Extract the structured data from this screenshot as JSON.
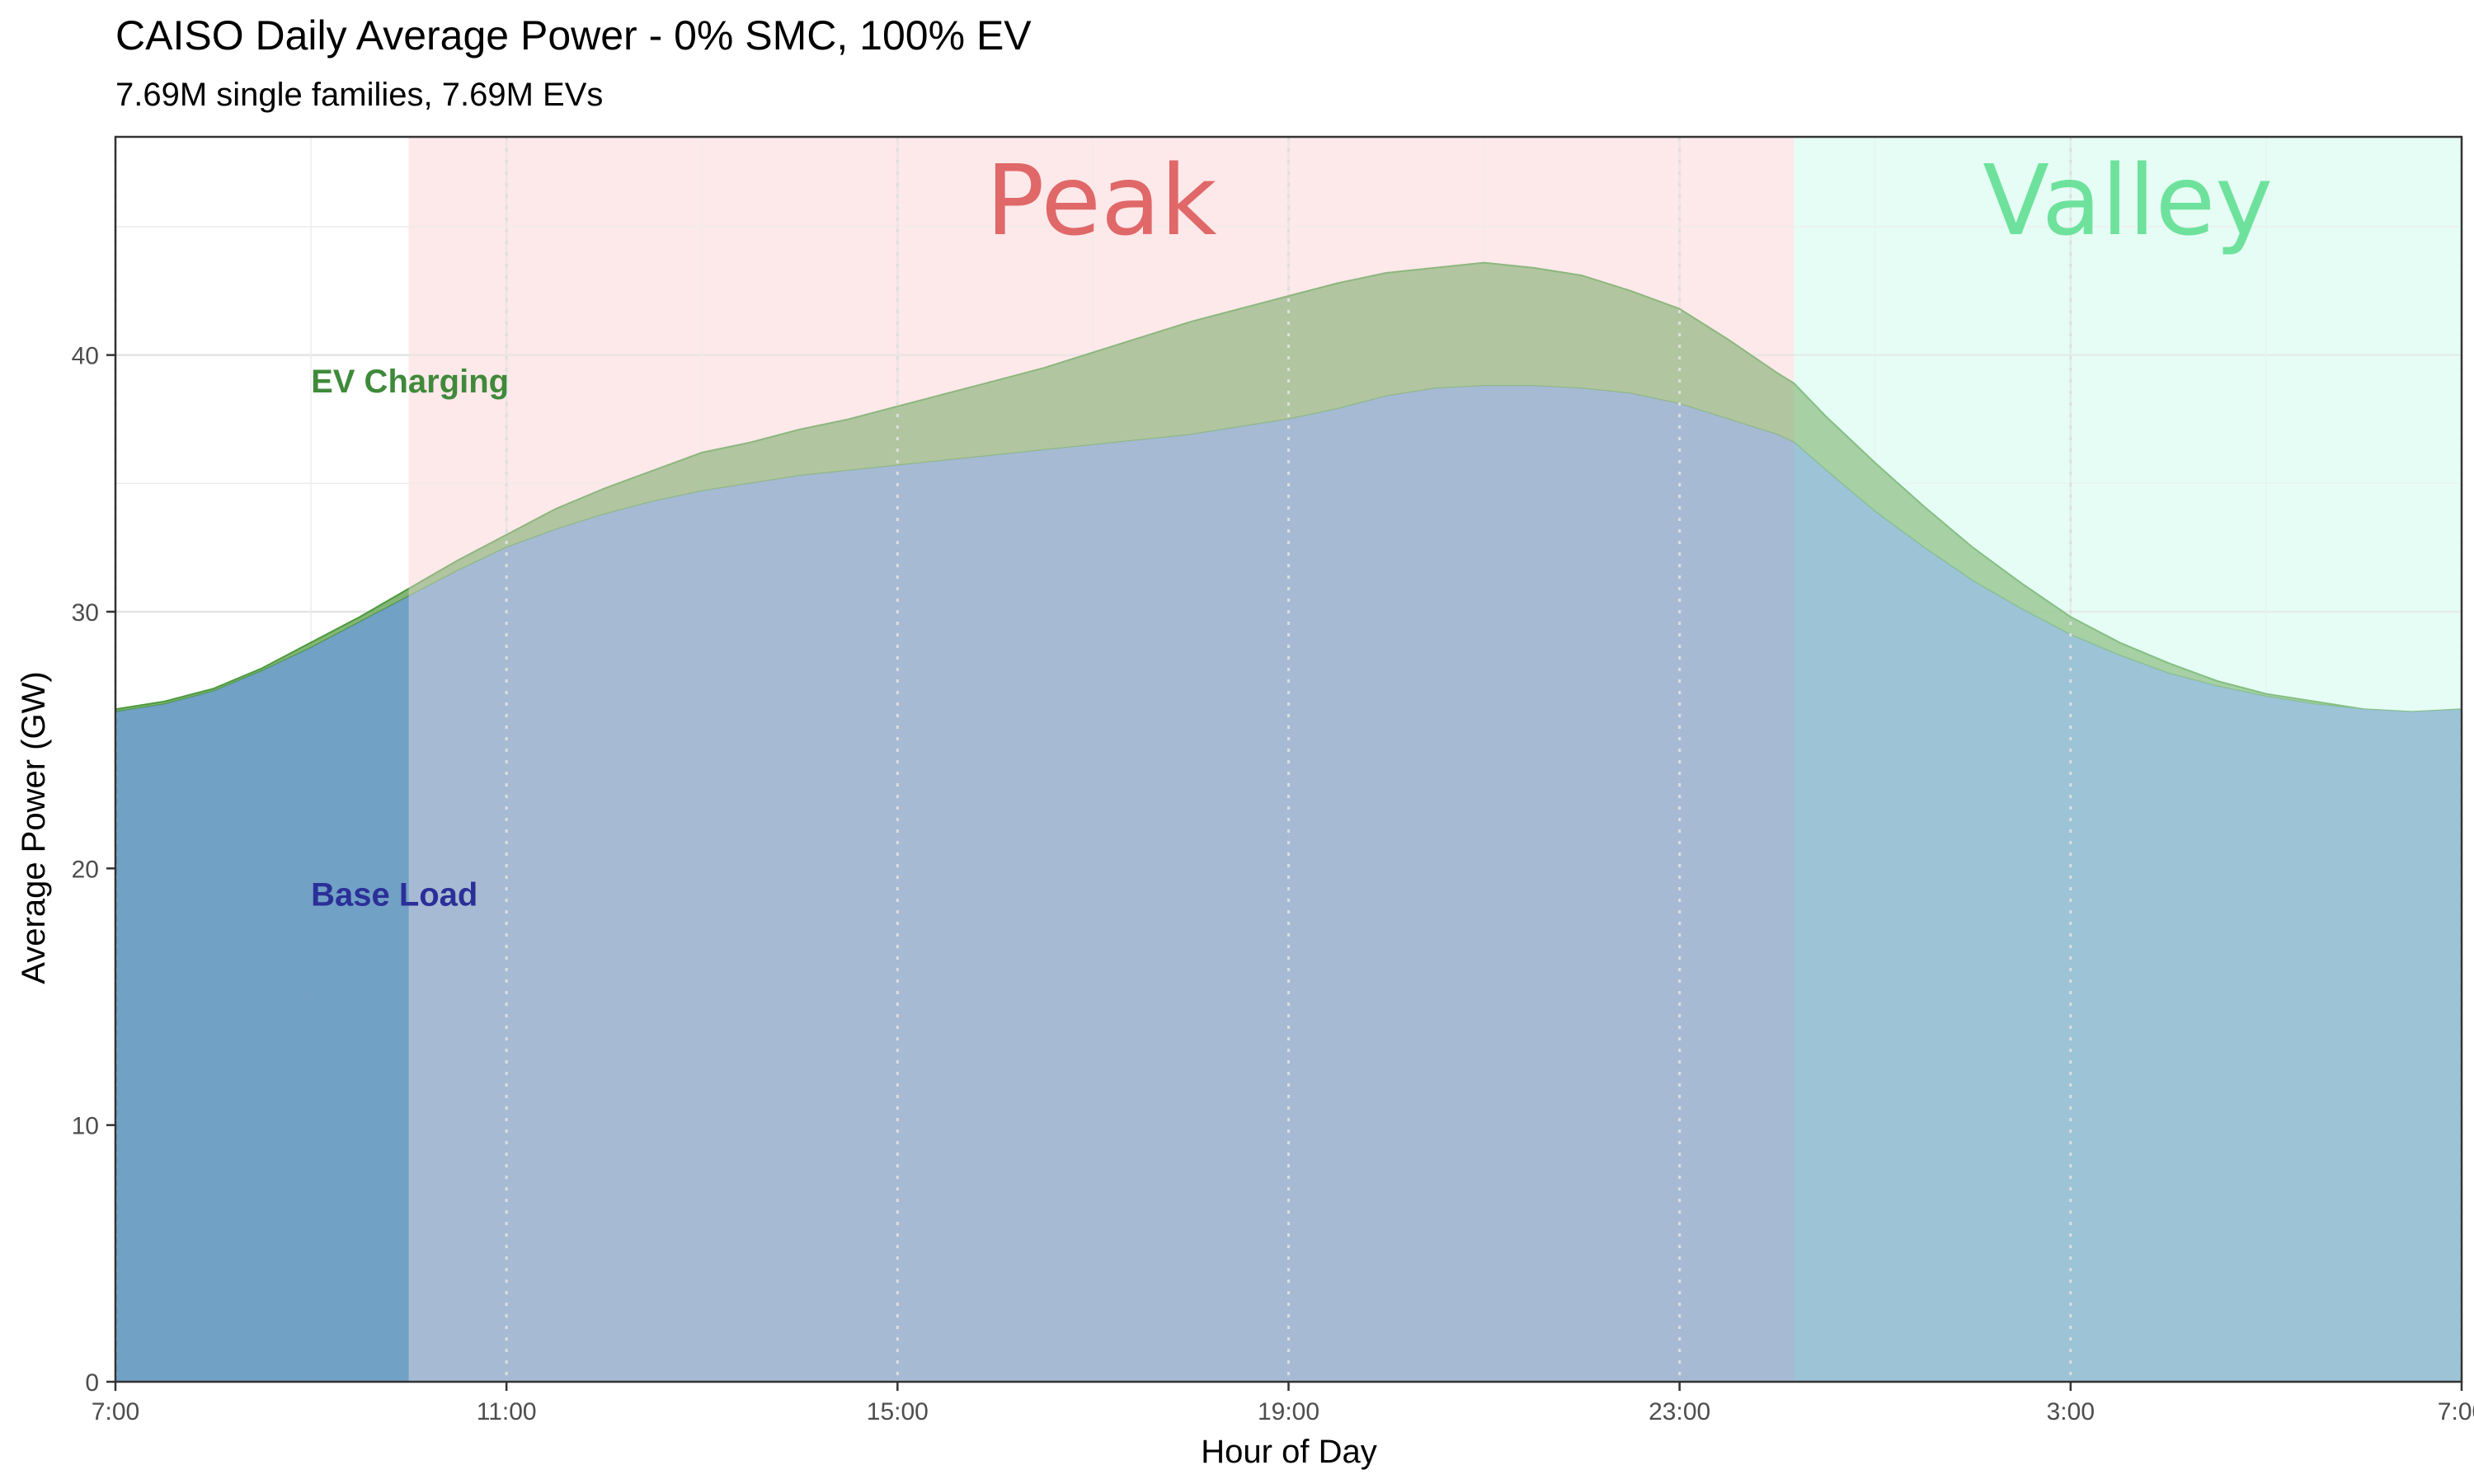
{
  "chart_data": {
    "type": "area",
    "title": "CAISO Daily Average Power - 0% SMC, 100% EV",
    "subtitle": "7.69M single families, 7.69M EVs",
    "xlabel": "Hour of Day",
    "ylabel": "Average Power (GW)",
    "xlim": [
      7,
      31
    ],
    "ylim": [
      0,
      48.5
    ],
    "x_ticks": [
      {
        "value": 7,
        "label": "7:00"
      },
      {
        "value": 11,
        "label": "11:00"
      },
      {
        "value": 15,
        "label": "15:00"
      },
      {
        "value": 19,
        "label": "19:00"
      },
      {
        "value": 23,
        "label": "23:00"
      },
      {
        "value": 27,
        "label": "3:00"
      },
      {
        "value": 31,
        "label": "7:00"
      }
    ],
    "y_ticks": [
      {
        "value": 0,
        "label": "0"
      },
      {
        "value": 10,
        "label": "10"
      },
      {
        "value": 20,
        "label": "20"
      },
      {
        "value": 30,
        "label": "30"
      },
      {
        "value": 40,
        "label": "40"
      }
    ],
    "grid": true,
    "zones": [
      {
        "name": "peak",
        "label": "Peak",
        "start": 10,
        "end": 24.17,
        "color": "#fde8ea",
        "text_color": "#e06868"
      },
      {
        "name": "valley",
        "label": "Valley",
        "start": 24.17,
        "end": 31,
        "color": "#e6fdf4",
        "text_color": "#6ee29c"
      }
    ],
    "stack_order": [
      "Base Load",
      "EV Charging"
    ],
    "x": [
      7,
      7.5,
      8,
      8.5,
      9,
      9.5,
      10,
      10.5,
      11,
      11.5,
      12,
      12.5,
      13,
      13.5,
      14,
      14.5,
      15,
      15.5,
      16,
      16.5,
      17,
      17.5,
      18,
      18.5,
      19,
      19.5,
      20,
      20.5,
      21,
      21.5,
      22,
      22.5,
      23,
      23.5,
      24,
      24.17,
      24.5,
      25,
      25.5,
      26,
      26.5,
      27,
      27.5,
      28,
      28.5,
      29,
      29.5,
      30,
      30.5,
      31
    ],
    "series": [
      {
        "name": "Base Load",
        "color": "#6a9cc3",
        "values": [
          26.1,
          26.4,
          26.9,
          27.7,
          28.6,
          29.6,
          30.6,
          31.6,
          32.5,
          33.2,
          33.8,
          34.3,
          34.7,
          35.0,
          35.3,
          35.5,
          35.7,
          35.9,
          36.1,
          36.3,
          36.5,
          36.7,
          36.9,
          37.2,
          37.5,
          37.9,
          38.4,
          38.7,
          38.8,
          38.8,
          38.7,
          38.5,
          38.1,
          37.5,
          36.9,
          36.6,
          35.5,
          33.9,
          32.5,
          31.2,
          30.1,
          29.1,
          28.3,
          27.6,
          27.1,
          26.7,
          26.4,
          26.2,
          26.1,
          26.2
        ]
      },
      {
        "name": "EV Charging",
        "color": "#6fa85e",
        "values": [
          0.1,
          0.1,
          0.1,
          0.1,
          0.2,
          0.2,
          0.3,
          0.4,
          0.5,
          0.8,
          1.0,
          1.2,
          1.5,
          1.6,
          1.8,
          2.0,
          2.3,
          2.6,
          2.9,
          3.2,
          3.6,
          4.0,
          4.4,
          4.6,
          4.8,
          4.9,
          4.8,
          4.7,
          4.8,
          4.6,
          4.4,
          4.0,
          3.7,
          3.1,
          2.4,
          2.3,
          2.1,
          1.9,
          1.6,
          1.3,
          1.0,
          0.7,
          0.5,
          0.4,
          0.2,
          0.1,
          0.1,
          0.0,
          0.0,
          0.0
        ]
      }
    ],
    "annotations": [
      {
        "text": "EV Charging",
        "x": 9,
        "y": 39,
        "color": "#3f8a3a"
      },
      {
        "text": "Base Load",
        "x": 9,
        "y": 19,
        "color": "#2b2f98"
      }
    ]
  }
}
